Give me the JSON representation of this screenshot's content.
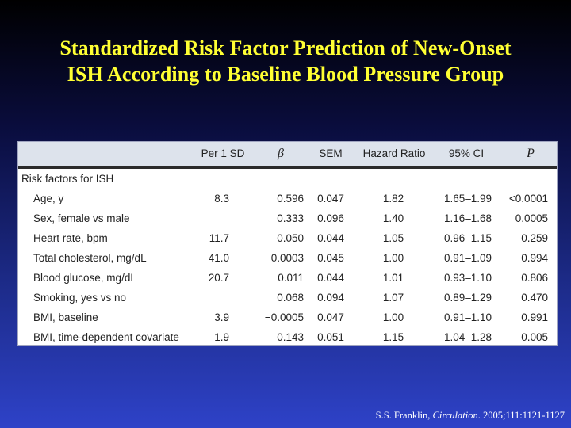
{
  "title": {
    "line1": "Standardized Risk Factor Prediction of New-Onset",
    "line2": "ISH According to Baseline Blood Pressure Group"
  },
  "table": {
    "headers": [
      "Per 1 SD",
      "β",
      "SEM",
      "Hazard Ratio",
      "95% CI",
      "P"
    ],
    "section_label": "Risk factors for ISH",
    "rows": [
      {
        "factor": "Age, y",
        "per_sd": "8.3",
        "beta": "0.596",
        "sem": "0.047",
        "hr": "1.82",
        "ci": "1.65–1.99",
        "p": "<0.0001"
      },
      {
        "factor": "Sex, female vs male",
        "per_sd": "",
        "beta": "0.333",
        "sem": "0.096",
        "hr": "1.40",
        "ci": "1.16–1.68",
        "p": "0.0005"
      },
      {
        "factor": "Heart rate, bpm",
        "per_sd": "11.7",
        "beta": "0.050",
        "sem": "0.044",
        "hr": "1.05",
        "ci": "0.96–1.15",
        "p": "0.259"
      },
      {
        "factor": "Total cholesterol, mg/dL",
        "per_sd": "41.0",
        "beta": "−0.0003",
        "sem": "0.045",
        "hr": "1.00",
        "ci": "0.91–1.09",
        "p": "0.994"
      },
      {
        "factor": "Blood glucose, mg/dL",
        "per_sd": "20.7",
        "beta": "0.011",
        "sem": "0.044",
        "hr": "1.01",
        "ci": "0.93–1.10",
        "p": "0.806"
      },
      {
        "factor": "Smoking, yes vs no",
        "per_sd": "",
        "beta": "0.068",
        "sem": "0.094",
        "hr": "1.07",
        "ci": "0.89–1.29",
        "p": "0.470"
      },
      {
        "factor": "BMI, baseline",
        "per_sd": "3.9",
        "beta": "−0.0005",
        "sem": "0.047",
        "hr": "1.00",
        "ci": "0.91–1.10",
        "p": "0.991"
      },
      {
        "factor": "BMI, time-dependent covariate",
        "per_sd": "1.9",
        "beta": "0.143",
        "sem": "0.051",
        "hr": "1.15",
        "ci": "1.04–1.28",
        "p": "0.005"
      }
    ]
  },
  "citation": {
    "author": "S.S. Franklin,",
    "journal": "Circulation",
    "details": ". 2005;111:1121-1127"
  },
  "colors": {
    "title": "#ffff33",
    "header_bg": "#dde3ec",
    "text": "#222222"
  }
}
